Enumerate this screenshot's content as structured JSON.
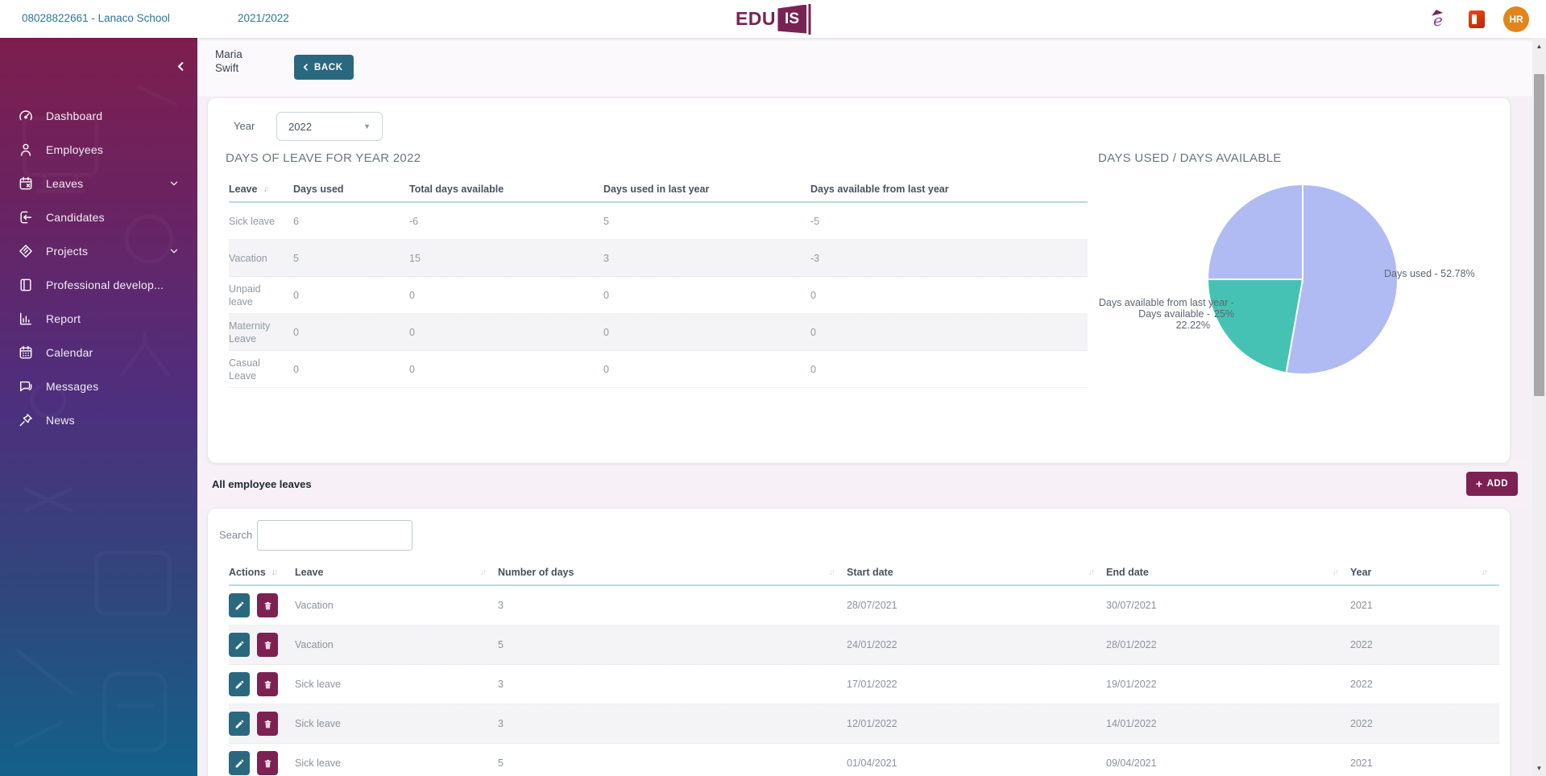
{
  "header": {
    "school_link": "08028822661 - Lanaco School",
    "school_year_link": "2021/2022",
    "logo_text": "EDU",
    "logo_box_text": "IS",
    "avatar_initials": "HR"
  },
  "sidebar": {
    "items": [
      {
        "label": "Dashboard",
        "icon": "dashboard-icon",
        "expandable": false
      },
      {
        "label": "Employees",
        "icon": "employees-icon",
        "expandable": false
      },
      {
        "label": "Leaves",
        "icon": "leaves-icon",
        "expandable": true
      },
      {
        "label": "Candidates",
        "icon": "candidates-icon",
        "expandable": false
      },
      {
        "label": "Projects",
        "icon": "projects-icon",
        "expandable": true
      },
      {
        "label": "Professional develop...",
        "icon": "professional-development-icon",
        "expandable": false
      },
      {
        "label": "Report",
        "icon": "report-icon",
        "expandable": false
      },
      {
        "label": "Calendar",
        "icon": "calendar-icon",
        "expandable": false
      },
      {
        "label": "Messages",
        "icon": "messages-icon",
        "expandable": false
      },
      {
        "label": "News",
        "icon": "news-icon",
        "expandable": false
      }
    ]
  },
  "toolbar": {
    "employee_name": "Maria Swift",
    "back_label": "BACK"
  },
  "year_filter": {
    "label": "Year",
    "value": "2022"
  },
  "leave_summary": {
    "title": "DAYS OF LEAVE FOR YEAR 2022",
    "columns": [
      "Leave",
      "Days used",
      "Total days available",
      "Days used in last year",
      "Days available from last year"
    ],
    "rows": [
      {
        "leave": "Sick leave",
        "days_used": "6",
        "total_days_available": "-6",
        "days_used_last_year": "5",
        "days_available_last_year": "-5"
      },
      {
        "leave": "Vacation",
        "days_used": "5",
        "total_days_available": "15",
        "days_used_last_year": "3",
        "days_available_last_year": "-3"
      },
      {
        "leave": "Unpaid leave",
        "days_used": "0",
        "total_days_available": "0",
        "days_used_last_year": "0",
        "days_available_last_year": "0"
      },
      {
        "leave": "Maternity Leave",
        "days_used": "0",
        "total_days_available": "0",
        "days_used_last_year": "0",
        "days_available_last_year": "0"
      },
      {
        "leave": "Casual Leave",
        "days_used": "0",
        "total_days_available": "0",
        "days_used_last_year": "0",
        "days_available_last_year": "0"
      }
    ]
  },
  "chart_data": {
    "type": "pie",
    "title": "DAYS USED / DAYS AVAILABLE",
    "legend": "none",
    "start_angle_deg": 0,
    "slices": [
      {
        "label": "Days used",
        "value": 52.78,
        "color": "#b1bbf3",
        "label_text": "Days used - 52.78%"
      },
      {
        "label": "Days available",
        "value": 22.22,
        "color": "#45c2b3",
        "label_text": "Days available - 22.22%"
      },
      {
        "label": "Days available from last year",
        "value": 25.0,
        "color": "#b1bbf3",
        "label_text": "Days available from last year - 25%"
      }
    ]
  },
  "employee_leaves": {
    "section_title": "All employee leaves",
    "add_button": "ADD",
    "search_label": "Search",
    "search_value": "",
    "columns": [
      "Actions",
      "Leave",
      "Number of days",
      "Start date",
      "End date",
      "Year"
    ],
    "rows": [
      {
        "leave": "Vacation",
        "number_of_days": "3",
        "start_date": "28/07/2021",
        "end_date": "30/07/2021",
        "year": "2021"
      },
      {
        "leave": "Vacation",
        "number_of_days": "5",
        "start_date": "24/01/2022",
        "end_date": "28/01/2022",
        "year": "2022"
      },
      {
        "leave": "Sick leave",
        "number_of_days": "3",
        "start_date": "17/01/2022",
        "end_date": "19/01/2022",
        "year": "2022"
      },
      {
        "leave": "Sick leave",
        "number_of_days": "3",
        "start_date": "12/01/2022",
        "end_date": "14/01/2022",
        "year": "2022"
      },
      {
        "leave": "Sick leave",
        "number_of_days": "5",
        "start_date": "01/04/2021",
        "end_date": "09/04/2021",
        "year": "2021"
      }
    ]
  }
}
